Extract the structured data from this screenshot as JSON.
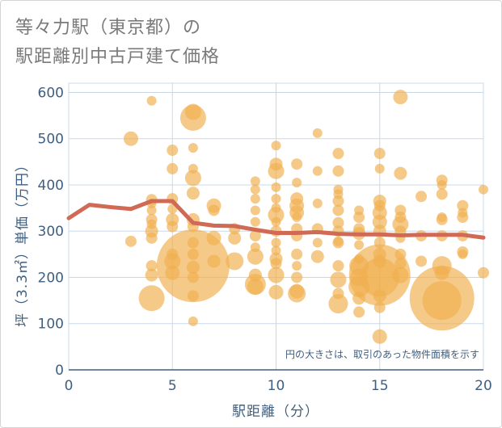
{
  "chart_data": {
    "type": "scatter",
    "title": [
      "等々力駅（東京都）の",
      "駅距離別中古戸建て価格"
    ],
    "xlabel": "駅距離（分）",
    "ylabel": "坪（3.3㎡）単価（万円）",
    "note": "円の大きさは、取引のあった物件面積を示す",
    "xlim": [
      0,
      20
    ],
    "ylim": [
      0,
      620
    ],
    "xticks": [
      "0",
      "5",
      "10",
      "15",
      "20"
    ],
    "yticks": [
      "0",
      "100",
      "200",
      "300",
      "400",
      "500",
      "600"
    ],
    "grid": true,
    "colors": {
      "bubble": "#f0b050",
      "line": "#d06a55",
      "axis": "#3f5f80",
      "grid": "#c9d8e8"
    },
    "series": [
      {
        "type": "bubble",
        "points": [
          {
            "x": 3,
            "y": 500,
            "s": 9
          },
          {
            "x": 3,
            "y": 278,
            "s": 7
          },
          {
            "x": 4,
            "y": 582,
            "s": 6
          },
          {
            "x": 4,
            "y": 368,
            "s": 7
          },
          {
            "x": 4,
            "y": 360,
            "s": 6
          },
          {
            "x": 4,
            "y": 345,
            "s": 6
          },
          {
            "x": 4,
            "y": 325,
            "s": 7
          },
          {
            "x": 4,
            "y": 315,
            "s": 6
          },
          {
            "x": 4,
            "y": 300,
            "s": 8
          },
          {
            "x": 4,
            "y": 285,
            "s": 7
          },
          {
            "x": 4,
            "y": 225,
            "s": 7
          },
          {
            "x": 4,
            "y": 205,
            "s": 8
          },
          {
            "x": 4,
            "y": 155,
            "s": 16
          },
          {
            "x": 5,
            "y": 475,
            "s": 7
          },
          {
            "x": 5,
            "y": 435,
            "s": 7
          },
          {
            "x": 5,
            "y": 370,
            "s": 7
          },
          {
            "x": 5,
            "y": 348,
            "s": 6
          },
          {
            "x": 5,
            "y": 325,
            "s": 8
          },
          {
            "x": 5,
            "y": 310,
            "s": 7
          },
          {
            "x": 5,
            "y": 250,
            "s": 7
          },
          {
            "x": 5,
            "y": 235,
            "s": 10
          },
          {
            "x": 5,
            "y": 210,
            "s": 9
          },
          {
            "x": 6,
            "y": 558,
            "s": 10
          },
          {
            "x": 6,
            "y": 545,
            "s": 16
          },
          {
            "x": 6,
            "y": 480,
            "s": 6
          },
          {
            "x": 6,
            "y": 435,
            "s": 6
          },
          {
            "x": 6,
            "y": 415,
            "s": 10
          },
          {
            "x": 6,
            "y": 382,
            "s": 8
          },
          {
            "x": 6,
            "y": 325,
            "s": 8
          },
          {
            "x": 6,
            "y": 310,
            "s": 7
          },
          {
            "x": 6,
            "y": 275,
            "s": 7
          },
          {
            "x": 6,
            "y": 250,
            "s": 7
          },
          {
            "x": 6,
            "y": 225,
            "s": 45
          },
          {
            "x": 6,
            "y": 222,
            "s": 8
          },
          {
            "x": 6,
            "y": 200,
            "s": 7
          },
          {
            "x": 6,
            "y": 160,
            "s": 7
          },
          {
            "x": 6,
            "y": 105,
            "s": 6
          },
          {
            "x": 7,
            "y": 355,
            "s": 9
          },
          {
            "x": 7,
            "y": 345,
            "s": 7
          },
          {
            "x": 7,
            "y": 285,
            "s": 9
          },
          {
            "x": 7,
            "y": 235,
            "s": 8
          },
          {
            "x": 8,
            "y": 305,
            "s": 7
          },
          {
            "x": 8,
            "y": 285,
            "s": 8
          },
          {
            "x": 8,
            "y": 235,
            "s": 11
          },
          {
            "x": 9,
            "y": 408,
            "s": 6
          },
          {
            "x": 9,
            "y": 390,
            "s": 6
          },
          {
            "x": 9,
            "y": 370,
            "s": 6
          },
          {
            "x": 9,
            "y": 345,
            "s": 6
          },
          {
            "x": 9,
            "y": 320,
            "s": 6
          },
          {
            "x": 9,
            "y": 290,
            "s": 7
          },
          {
            "x": 9,
            "y": 265,
            "s": 6
          },
          {
            "x": 9,
            "y": 245,
            "s": 10
          },
          {
            "x": 9,
            "y": 205,
            "s": 8
          },
          {
            "x": 9,
            "y": 185,
            "s": 13
          },
          {
            "x": 9,
            "y": 180,
            "s": 10
          },
          {
            "x": 10,
            "y": 485,
            "s": 6
          },
          {
            "x": 10,
            "y": 445,
            "s": 8
          },
          {
            "x": 10,
            "y": 430,
            "s": 10
          },
          {
            "x": 10,
            "y": 395,
            "s": 6
          },
          {
            "x": 10,
            "y": 370,
            "s": 6
          },
          {
            "x": 10,
            "y": 350,
            "s": 6
          },
          {
            "x": 10,
            "y": 335,
            "s": 10
          },
          {
            "x": 10,
            "y": 320,
            "s": 6
          },
          {
            "x": 10,
            "y": 300,
            "s": 7
          },
          {
            "x": 10,
            "y": 275,
            "s": 6
          },
          {
            "x": 10,
            "y": 258,
            "s": 6
          },
          {
            "x": 10,
            "y": 240,
            "s": 8
          },
          {
            "x": 10,
            "y": 230,
            "s": 7
          },
          {
            "x": 10,
            "y": 205,
            "s": 10
          },
          {
            "x": 10,
            "y": 168,
            "s": 9
          },
          {
            "x": 11,
            "y": 445,
            "s": 7
          },
          {
            "x": 11,
            "y": 405,
            "s": 6
          },
          {
            "x": 11,
            "y": 370,
            "s": 8
          },
          {
            "x": 11,
            "y": 355,
            "s": 9
          },
          {
            "x": 11,
            "y": 340,
            "s": 9
          },
          {
            "x": 11,
            "y": 330,
            "s": 6
          },
          {
            "x": 11,
            "y": 305,
            "s": 7
          },
          {
            "x": 11,
            "y": 290,
            "s": 7
          },
          {
            "x": 11,
            "y": 250,
            "s": 7
          },
          {
            "x": 11,
            "y": 225,
            "s": 6
          },
          {
            "x": 11,
            "y": 200,
            "s": 7
          },
          {
            "x": 11,
            "y": 170,
            "s": 9
          },
          {
            "x": 11,
            "y": 165,
            "s": 11
          },
          {
            "x": 12,
            "y": 512,
            "s": 6
          },
          {
            "x": 12,
            "y": 430,
            "s": 6
          },
          {
            "x": 12,
            "y": 360,
            "s": 6
          },
          {
            "x": 12,
            "y": 305,
            "s": 7
          },
          {
            "x": 12,
            "y": 275,
            "s": 6
          },
          {
            "x": 12,
            "y": 245,
            "s": 8
          },
          {
            "x": 13,
            "y": 468,
            "s": 7
          },
          {
            "x": 13,
            "y": 430,
            "s": 7
          },
          {
            "x": 13,
            "y": 390,
            "s": 6
          },
          {
            "x": 13,
            "y": 380,
            "s": 6
          },
          {
            "x": 13,
            "y": 365,
            "s": 7
          },
          {
            "x": 13,
            "y": 345,
            "s": 7
          },
          {
            "x": 13,
            "y": 318,
            "s": 7
          },
          {
            "x": 13,
            "y": 300,
            "s": 7
          },
          {
            "x": 13,
            "y": 278,
            "s": 6
          },
          {
            "x": 13,
            "y": 275,
            "s": 7
          },
          {
            "x": 13,
            "y": 225,
            "s": 7
          },
          {
            "x": 13,
            "y": 195,
            "s": 10
          },
          {
            "x": 13,
            "y": 165,
            "s": 7
          },
          {
            "x": 13,
            "y": 143,
            "s": 12
          },
          {
            "x": 14,
            "y": 345,
            "s": 6
          },
          {
            "x": 14,
            "y": 330,
            "s": 7
          },
          {
            "x": 14,
            "y": 305,
            "s": 7
          },
          {
            "x": 14,
            "y": 295,
            "s": 8
          },
          {
            "x": 14,
            "y": 270,
            "s": 6
          },
          {
            "x": 14,
            "y": 240,
            "s": 6
          },
          {
            "x": 14,
            "y": 225,
            "s": 12
          },
          {
            "x": 14,
            "y": 200,
            "s": 11
          },
          {
            "x": 14,
            "y": 180,
            "s": 13
          },
          {
            "x": 14,
            "y": 155,
            "s": 8
          },
          {
            "x": 14,
            "y": 125,
            "s": 7
          },
          {
            "x": 15,
            "y": 468,
            "s": 7
          },
          {
            "x": 15,
            "y": 435,
            "s": 6
          },
          {
            "x": 15,
            "y": 365,
            "s": 8
          },
          {
            "x": 15,
            "y": 355,
            "s": 7
          },
          {
            "x": 15,
            "y": 340,
            "s": 9
          },
          {
            "x": 15,
            "y": 320,
            "s": 9
          },
          {
            "x": 15,
            "y": 300,
            "s": 8
          },
          {
            "x": 15,
            "y": 275,
            "s": 7
          },
          {
            "x": 15,
            "y": 250,
            "s": 8
          },
          {
            "x": 15,
            "y": 235,
            "s": 8
          },
          {
            "x": 15,
            "y": 205,
            "s": 38
          },
          {
            "x": 15,
            "y": 200,
            "s": 24
          },
          {
            "x": 15,
            "y": 160,
            "s": 8
          },
          {
            "x": 15,
            "y": 135,
            "s": 7
          },
          {
            "x": 15,
            "y": 72,
            "s": 9
          },
          {
            "x": 16,
            "y": 590,
            "s": 9
          },
          {
            "x": 16,
            "y": 425,
            "s": 8
          },
          {
            "x": 16,
            "y": 345,
            "s": 7
          },
          {
            "x": 16,
            "y": 330,
            "s": 7
          },
          {
            "x": 16,
            "y": 315,
            "s": 10
          },
          {
            "x": 16,
            "y": 300,
            "s": 7
          },
          {
            "x": 16,
            "y": 285,
            "s": 6
          },
          {
            "x": 16,
            "y": 250,
            "s": 7
          },
          {
            "x": 16,
            "y": 230,
            "s": 7
          },
          {
            "x": 16,
            "y": 205,
            "s": 10
          },
          {
            "x": 17,
            "y": 375,
            "s": 7
          },
          {
            "x": 17,
            "y": 290,
            "s": 7
          },
          {
            "x": 17,
            "y": 235,
            "s": 7
          },
          {
            "x": 18,
            "y": 410,
            "s": 7
          },
          {
            "x": 18,
            "y": 400,
            "s": 6
          },
          {
            "x": 18,
            "y": 380,
            "s": 7
          },
          {
            "x": 18,
            "y": 330,
            "s": 6
          },
          {
            "x": 18,
            "y": 325,
            "s": 7
          },
          {
            "x": 18,
            "y": 290,
            "s": 7
          },
          {
            "x": 18,
            "y": 225,
            "s": 12
          },
          {
            "x": 18,
            "y": 210,
            "s": 9
          },
          {
            "x": 18,
            "y": 155,
            "s": 40
          },
          {
            "x": 18,
            "y": 150,
            "s": 24
          },
          {
            "x": 19,
            "y": 355,
            "s": 7
          },
          {
            "x": 19,
            "y": 340,
            "s": 6
          },
          {
            "x": 19,
            "y": 330,
            "s": 7
          },
          {
            "x": 19,
            "y": 290,
            "s": 7
          },
          {
            "x": 19,
            "y": 255,
            "s": 7
          },
          {
            "x": 19,
            "y": 250,
            "s": 6
          },
          {
            "x": 20,
            "y": 390,
            "s": 6
          },
          {
            "x": 20,
            "y": 210,
            "s": 7
          }
        ]
      },
      {
        "type": "line",
        "x": [
          0,
          1,
          2,
          3,
          4,
          5,
          6,
          7,
          8,
          9,
          10,
          11,
          12,
          13,
          14,
          15,
          16,
          17,
          18,
          19,
          20
        ],
        "y": [
          328,
          357,
          352,
          348,
          365,
          365,
          318,
          312,
          311,
          303,
          296,
          296,
          298,
          294,
          293,
          293,
          291,
          292,
          292,
          292,
          286
        ]
      }
    ]
  }
}
